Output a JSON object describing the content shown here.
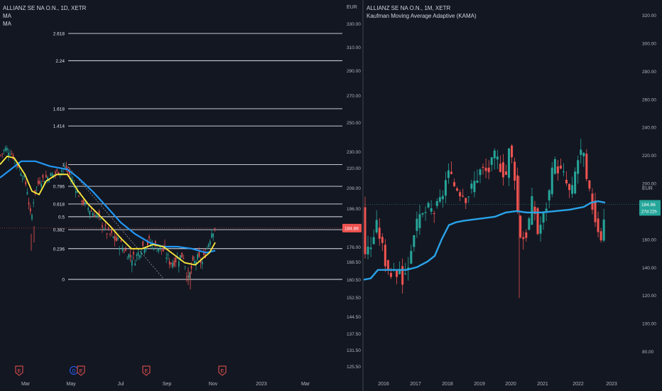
{
  "chart_data": [
    {
      "type": "candlestick",
      "title": "ALLIANZ SE NA O.N., 1D, XETR",
      "indicators": [
        "MA",
        "MA"
      ],
      "currency": "EUR",
      "price_ticks": [
        330.0,
        310.0,
        290.0,
        270.0,
        250.0,
        230.0,
        220.0,
        208.0,
        196.0,
        184.0,
        176.0,
        168.5,
        160.5,
        152.5,
        144.5,
        137.5,
        131.5,
        125.5
      ],
      "last_price_label": "184.86",
      "x_ticks": [
        "Mar",
        "May",
        "Jul",
        "Sep",
        "Nov",
        "2023",
        "Mar"
      ],
      "fib_levels": [
        {
          "label": "2.618"
        },
        {
          "label": "2.24"
        },
        {
          "label": "1.618"
        },
        {
          "label": "1.414"
        },
        {
          "label": "1"
        },
        {
          "label": "0.786"
        },
        {
          "label": "0.618"
        },
        {
          "label": "0.5"
        },
        {
          "label": "0.382"
        },
        {
          "label": "0.236"
        },
        {
          "label": "0"
        }
      ],
      "fib_anchor_low": 160.5,
      "fib_anchor_high": 222.0,
      "event_markers": [
        "E",
        "D",
        "E",
        "E",
        "E"
      ],
      "colors": {
        "up": "#26a69a",
        "down": "#ef5350",
        "ma_fast": "#ffeb3b",
        "ma_slow": "#2196f3",
        "fib": "#e0e3eb"
      }
    },
    {
      "type": "candlestick",
      "title": "ALLIANZ SE NA O.N., 1M, XETR",
      "indicators": [
        "Kaufman Moving Average Adaptive (KAMA)"
      ],
      "currency": "EUR",
      "price_ticks": [
        320.0,
        300.0,
        280.0,
        260.0,
        240.0,
        220.0,
        200.0,
        180.0,
        160.0,
        140.0,
        120.0,
        100.0,
        80.0
      ],
      "last_price_label": "184.86",
      "countdown_label": "27d 22h",
      "x_ticks": [
        "2016",
        "2017",
        "2018",
        "2019",
        "2020",
        "2021",
        "2022",
        "2023"
      ],
      "colors": {
        "up": "#26a69a",
        "down": "#ef5350",
        "kama": "#29a3e8"
      }
    }
  ]
}
